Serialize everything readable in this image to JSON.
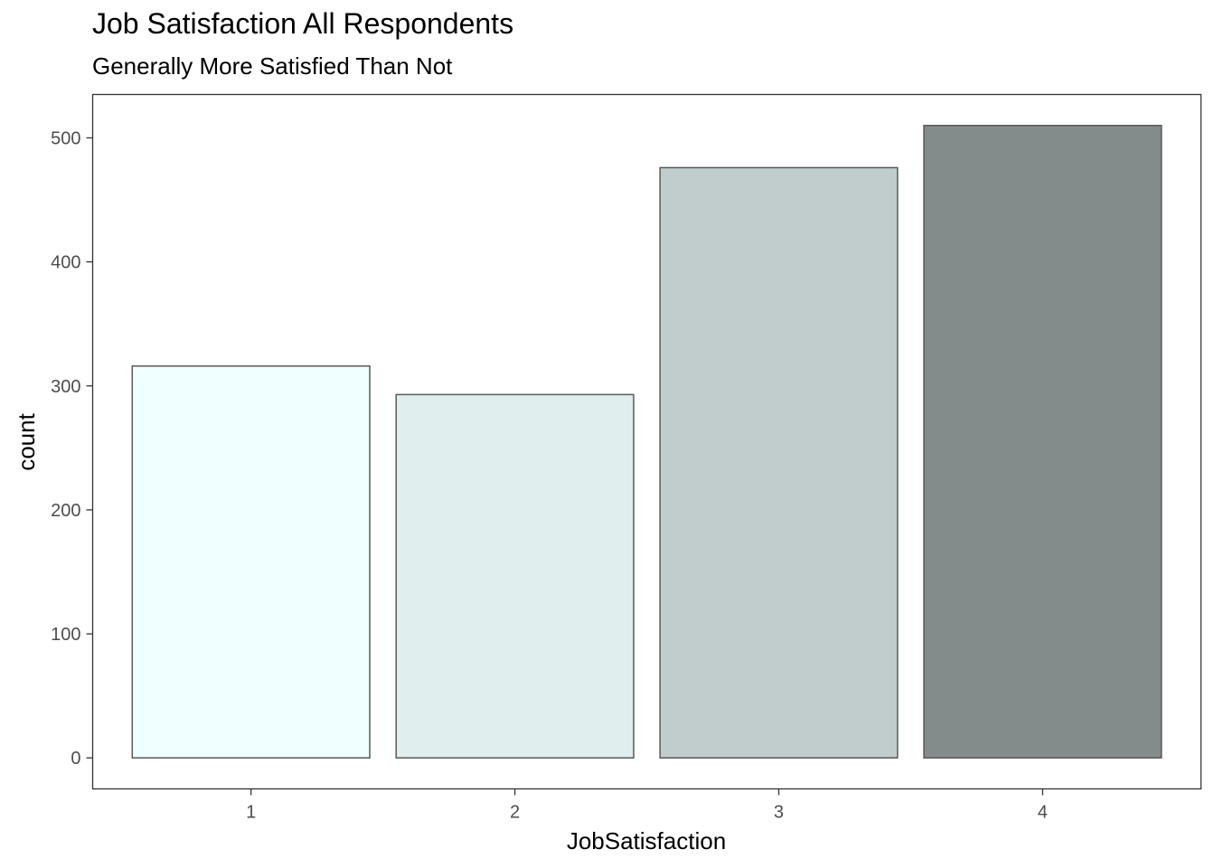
{
  "chart_data": {
    "type": "bar",
    "title": "Job Satisfaction All Respondents",
    "subtitle": "Generally More Satisfied Than Not",
    "xlabel": "JobSatisfaction",
    "ylabel": "count",
    "categories": [
      "1",
      "2",
      "3",
      "4"
    ],
    "values": [
      316,
      293,
      476,
      510
    ],
    "fill_colors": [
      "#F0FFFF",
      "#E0EEEE",
      "#C1CDCD",
      "#838B8B"
    ],
    "bar_outline_color": "#595959",
    "yticks": [
      0,
      100,
      200,
      300,
      400,
      500
    ],
    "ylim": [
      -25,
      535
    ],
    "grid": false,
    "legend": "none"
  }
}
